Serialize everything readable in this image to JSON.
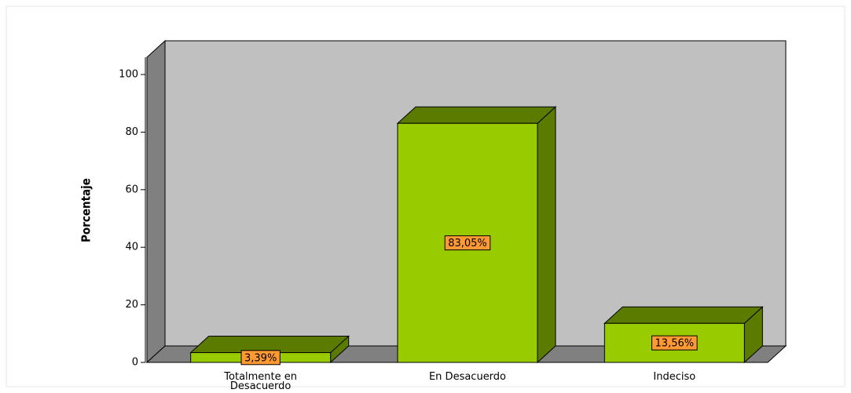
{
  "chart_data": {
    "type": "bar3d",
    "y_label": "Porcentaje",
    "categories": [
      "Totalmente en Desacuerdo",
      "En Desacuerdo",
      "Indeciso"
    ],
    "values": [
      3.39,
      83.05,
      13.56
    ],
    "value_labels": [
      "3,39%",
      "83,05%",
      "13,56%"
    ],
    "color": "#99cc00",
    "ylim": [
      0,
      106
    ],
    "yticks": [
      0,
      20,
      40,
      60,
      80,
      100
    ]
  }
}
